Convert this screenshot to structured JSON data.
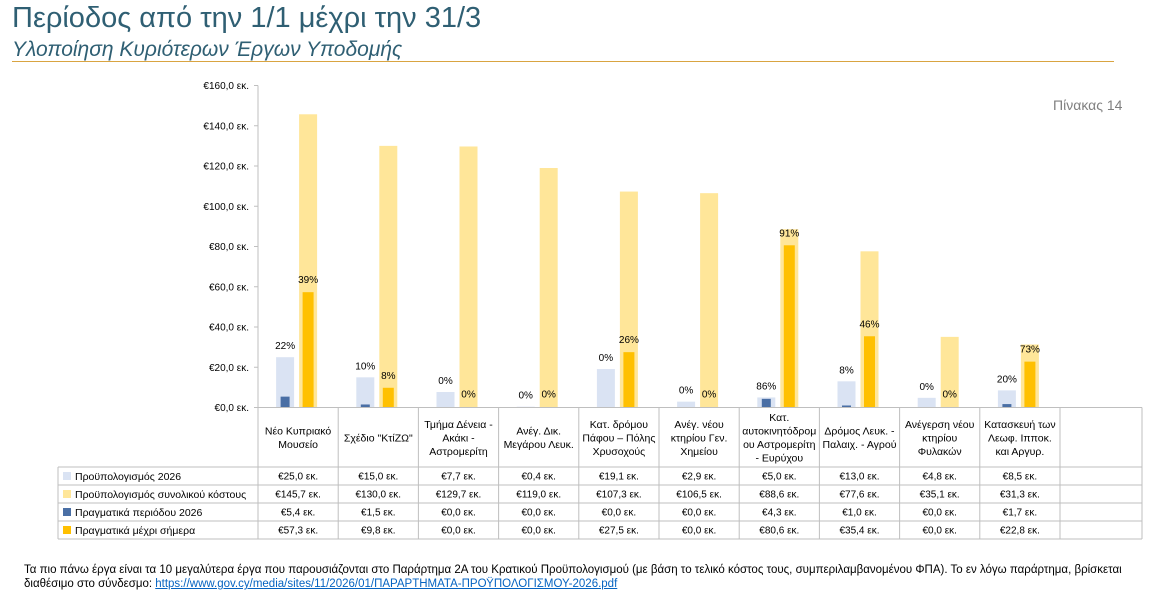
{
  "title": "Περίοδος από την 1/1 μέχρι την 31/3",
  "subtitle": "Υλοποίηση Κυριότερων Έργων Υποδομής",
  "table_label": "Πίνακας 14",
  "footnote": {
    "text": "Τα πιο πάνω έργα είναι τα 10 μεγαλύτερα έργα που παρουσιάζονται στο Παράρτημα 2Α του Κρατικού Προϋπολογισμού (με βάση το τελικό κόστος τους, συμπεριλαμβανομένου ΦΠΑ). Το εν λόγω παράρτημα, βρίσκεται διαθέσιμο στο σύνδεσμο:",
    "link": "https://www.gov.cy/media/sites/11/2026/01/ΠΑΡΑΡΤΗΜΑΤΑ-ΠΡΟΫΠΟΛΟΓΙΣΜΟΥ-2026.pdf"
  },
  "chart_data": {
    "type": "bar",
    "ylim": [
      0,
      160
    ],
    "yticks": [
      0,
      20,
      40,
      60,
      80,
      100,
      120,
      140,
      160
    ],
    "ytick_labels": [
      "€0,0 εκ.",
      "€20,0 εκ.",
      "€40,0 εκ.",
      "€60,0 εκ.",
      "€80,0 εκ.",
      "€100,0 εκ.",
      "€120,0 εκ.",
      "€140,0 εκ.",
      "€160,0 εκ."
    ],
    "categories": [
      [
        "Νέο Κυπριακό",
        "Μουσείο"
      ],
      [
        "Σχέδιο \"ΚτίΖΩ\""
      ],
      [
        "Τμήμα Δένεια -",
        "Ακάκι -",
        "Αστρομερίτη"
      ],
      [
        "Ανέγ. Δικ.",
        "Μεγάρου Λευκ."
      ],
      [
        "Κατ. δρόμου",
        "Πάφου – Πόλης",
        "Χρυσοχούς"
      ],
      [
        "Ανέγ. νέου",
        "κτηρίου Γεν.",
        "Χημείου"
      ],
      [
        "Κατ.",
        "αυτοκινητόδρομ",
        "ου Αστρομερίτη",
        "- Ευρύχου"
      ],
      [
        "Δρόμος Λευκ. -",
        "Παλαιχ. - Αγρού"
      ],
      [
        "Ανέγερση νέου",
        "κτηρίου",
        "Φυλακών"
      ],
      [
        "Κατασκευή των",
        "Λεωφ. Ιπποκ.",
        "και Αργυρ."
      ]
    ],
    "series": [
      {
        "name": "Προϋπολογισμός 2026",
        "color": "#dae3f3",
        "values": [
          25.0,
          15.0,
          7.7,
          0.4,
          19.1,
          2.9,
          5.0,
          13.0,
          4.8,
          8.5
        ],
        "labels": [
          "€25,0 εκ.",
          "€15,0 εκ.",
          "€7,7 εκ.",
          "€0,4 εκ.",
          "€19,1 εκ.",
          "€2,9 εκ.",
          "€5,0 εκ.",
          "€13,0 εκ.",
          "€4,8 εκ.",
          "€8,5 εκ."
        ]
      },
      {
        "name": "Προϋπολογισμός συνολικού κόστους",
        "color": "#ffe699",
        "values": [
          145.7,
          130.0,
          129.7,
          119.0,
          107.3,
          106.5,
          88.6,
          77.6,
          35.1,
          31.3
        ],
        "labels": [
          "€145,7 εκ.",
          "€130,0 εκ.",
          "€129,7 εκ.",
          "€119,0 εκ.",
          "€107,3 εκ.",
          "€106,5 εκ.",
          "€88,6 εκ.",
          "€77,6 εκ.",
          "€35,1 εκ.",
          "€31,3 εκ."
        ]
      },
      {
        "name": "Πραγματικά περιόδου 2026",
        "color": "#4a6fa5",
        "values": [
          5.4,
          1.5,
          0.0,
          0.0,
          0.0,
          0.0,
          4.3,
          1.0,
          0.0,
          1.7
        ],
        "labels": [
          "€5,4 εκ.",
          "€1,5 εκ.",
          "€0,0 εκ.",
          "€0,0 εκ.",
          "€0,0 εκ.",
          "€0,0 εκ.",
          "€4,3 εκ.",
          "€1,0 εκ.",
          "€0,0 εκ.",
          "€1,7 εκ."
        ]
      },
      {
        "name": "Πραγματικά μέχρι σήμερα",
        "color": "#ffc000",
        "values": [
          57.3,
          9.8,
          0.0,
          0.0,
          27.5,
          0.0,
          80.6,
          35.4,
          0.0,
          22.8
        ],
        "labels": [
          "€57,3 εκ.",
          "€9,8 εκ.",
          "€0,0 εκ.",
          "€0,0 εκ.",
          "€27,5 εκ.",
          "€0,0 εκ.",
          "€80,6 εκ.",
          "€35,4 εκ.",
          "€0,0 εκ.",
          "€22,8 εκ."
        ]
      }
    ],
    "pct_period": [
      "22%",
      "10%",
      "0%",
      "0%",
      "0%",
      "0%",
      "86%",
      "8%",
      "0%",
      "20%"
    ],
    "pct_total": [
      "39%",
      "8%",
      "0%",
      "0%",
      "26%",
      "0%",
      "91%",
      "46%",
      "0%",
      "73%"
    ]
  }
}
